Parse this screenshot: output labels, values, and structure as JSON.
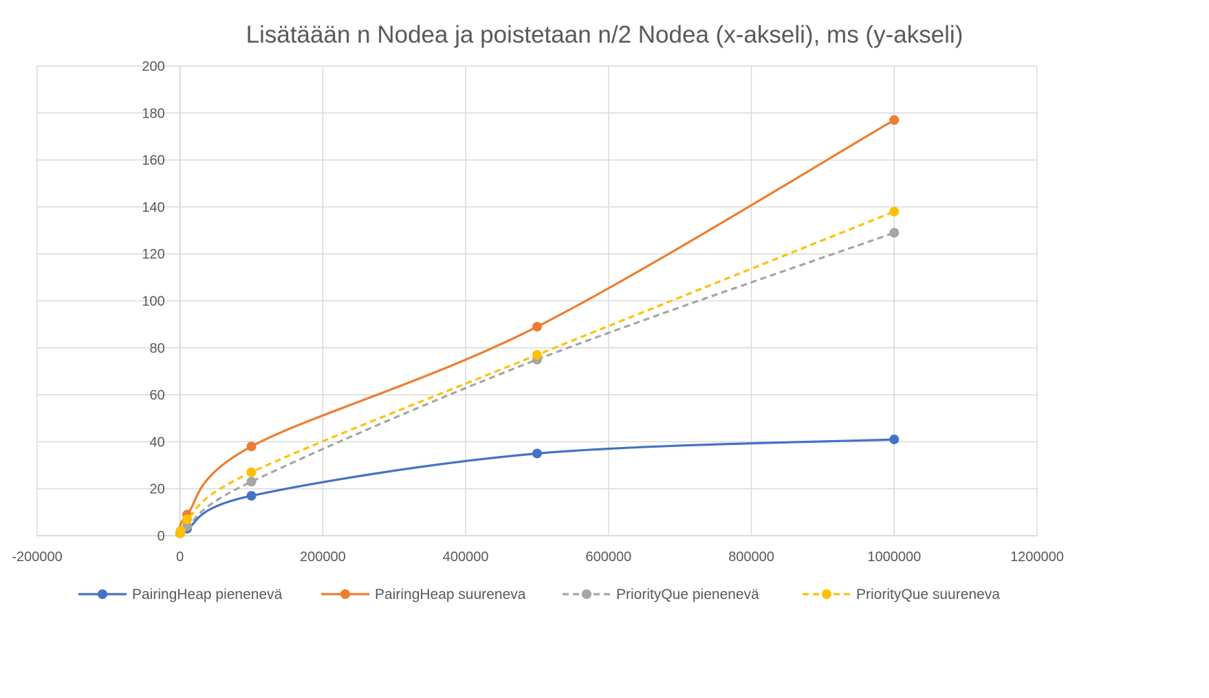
{
  "chart_data": {
    "type": "scatter",
    "title": "Lisätäään n Nodea ja poistetaan n/2 Nodea (x-akseli), ms (y-akseli)",
    "xlabel": "",
    "ylabel": "",
    "xlim": [
      -200000,
      1200000
    ],
    "ylim": [
      0,
      200
    ],
    "x_ticks": [
      -200000,
      0,
      200000,
      400000,
      600000,
      800000,
      1000000,
      1200000
    ],
    "x_tick_labels": [
      "-200000",
      "0",
      "200000",
      "400000",
      "600000",
      "800000",
      "1000000",
      "1200000"
    ],
    "y_ticks": [
      0,
      20,
      40,
      60,
      80,
      100,
      120,
      140,
      160,
      180,
      200
    ],
    "y_tick_labels": [
      "0",
      "20",
      "40",
      "60",
      "80",
      "100",
      "120",
      "140",
      "160",
      "180",
      "200"
    ],
    "grid": true,
    "legend_position": "bottom",
    "series": [
      {
        "name": "PairingHeap pienenevä",
        "color": "#4472c4",
        "dashed": false,
        "smooth": true,
        "x": [
          100,
          1000,
          10000,
          100000,
          500000,
          1000000
        ],
        "y": [
          1,
          2,
          3,
          17,
          35,
          41
        ]
      },
      {
        "name": "PairingHeap suureneva",
        "color": "#ed7d31",
        "dashed": false,
        "smooth": true,
        "x": [
          100,
          1000,
          10000,
          100000,
          500000,
          1000000
        ],
        "y": [
          1,
          2,
          9,
          38,
          89,
          177
        ]
      },
      {
        "name": "PriorityQue pienenevä",
        "color": "#a5a5a5",
        "dashed": true,
        "smooth": true,
        "x": [
          100,
          1000,
          10000,
          100000,
          500000,
          1000000
        ],
        "y": [
          1,
          2,
          4,
          23,
          75,
          129
        ]
      },
      {
        "name": "PriorityQue suureneva",
        "color": "#ffc000",
        "dashed": true,
        "smooth": true,
        "x": [
          100,
          1000,
          10000,
          100000,
          500000,
          1000000
        ],
        "y": [
          1,
          2,
          7,
          27,
          77,
          138
        ]
      }
    ]
  }
}
